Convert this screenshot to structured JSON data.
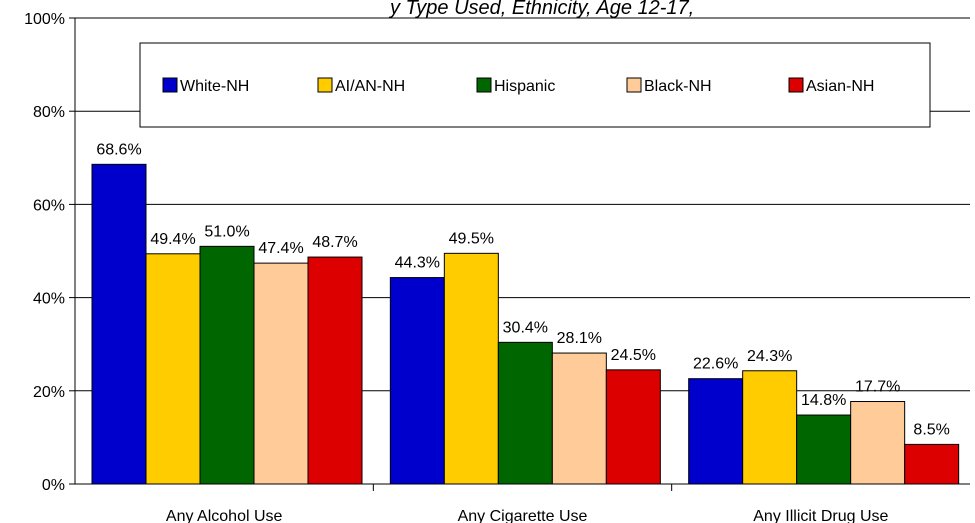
{
  "chart_data": {
    "type": "bar",
    "title_fragment": "y Type Used, Ethnicity, Age 12-17,",
    "categories": [
      "Any Alcohol Use",
      "Any Cigarette Use",
      "Any Illicit Drug Use"
    ],
    "series": [
      {
        "name": "White-NH",
        "color": "#0000cc",
        "values": [
          68.6,
          44.3,
          22.6
        ],
        "labels": [
          "68.6%",
          "44.3%",
          "22.6%"
        ]
      },
      {
        "name": "AI/AN-NH",
        "color": "#ffcc00",
        "values": [
          49.4,
          49.5,
          24.3
        ],
        "labels": [
          "49.4%",
          "49.5%",
          "24.3%"
        ]
      },
      {
        "name": "Hispanic",
        "color": "#006600",
        "values": [
          51.0,
          30.4,
          14.8
        ],
        "labels": [
          "51.0%",
          "30.4%",
          "14.8%"
        ]
      },
      {
        "name": "Black-NH",
        "color": "#ffcc99",
        "values": [
          47.4,
          28.1,
          17.7
        ],
        "labels": [
          "47.4%",
          "28.1%",
          "17.7%"
        ]
      },
      {
        "name": "Asian-NH",
        "color": "#dd0000",
        "values": [
          48.7,
          24.5,
          8.5
        ],
        "labels": [
          "48.7%",
          "24.5%",
          "8.5%"
        ]
      }
    ],
    "yticks": [
      "0%",
      "20%",
      "40%",
      "60%",
      "80%",
      "100%"
    ],
    "ylim": [
      0,
      100
    ],
    "grid": true,
    "legend_position": "top"
  }
}
